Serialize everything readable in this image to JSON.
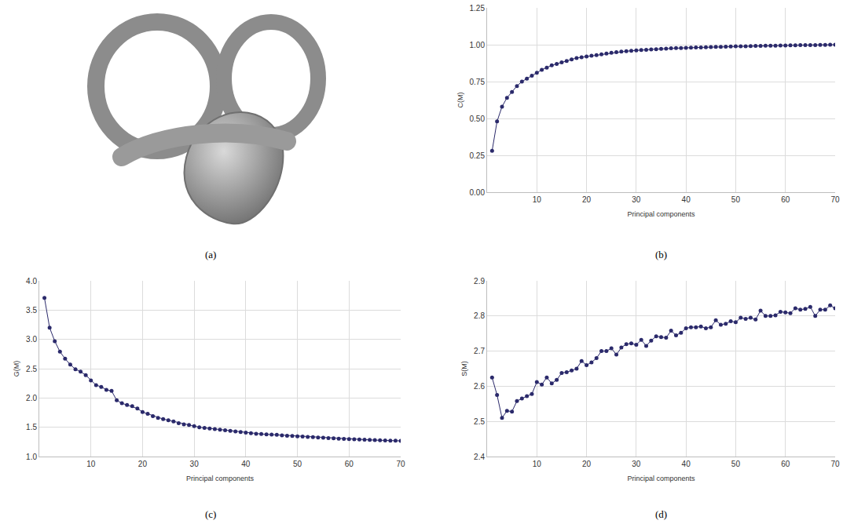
{
  "panel_a": {
    "caption": "(a)"
  },
  "chart_data": [
    {
      "type": "line",
      "caption": "(b)",
      "x_label": "Principal components",
      "y_label": "C(M)",
      "marker": "circle",
      "color": "#2b2a6b",
      "grid": true,
      "xlim": [
        0,
        70
      ],
      "xticks": [
        10,
        20,
        30,
        40,
        50,
        60,
        70
      ],
      "ylim": [
        0,
        1.25
      ],
      "yticks": [
        {
          "value": 0,
          "label": "0.00"
        },
        {
          "value": 0.25,
          "label": "0.25"
        },
        {
          "value": 0.5,
          "label": "0.50"
        },
        {
          "value": 0.75,
          "label": "0.75"
        },
        {
          "value": 1,
          "label": "1.00"
        },
        {
          "value": 1.25,
          "label": "1.25"
        }
      ],
      "x": [
        1,
        2,
        3,
        4,
        5,
        6,
        7,
        8,
        9,
        10,
        11,
        12,
        13,
        14,
        15,
        16,
        17,
        18,
        19,
        20,
        21,
        22,
        23,
        24,
        25,
        26,
        27,
        28,
        29,
        30,
        31,
        32,
        33,
        34,
        35,
        36,
        37,
        38,
        39,
        40,
        41,
        42,
        43,
        44,
        45,
        46,
        47,
        48,
        49,
        50,
        51,
        52,
        53,
        54,
        55,
        56,
        57,
        58,
        59,
        60,
        61,
        62,
        63,
        64,
        65,
        66,
        67,
        68,
        69,
        70
      ],
      "values": [
        0.28,
        0.48,
        0.58,
        0.64,
        0.68,
        0.72,
        0.75,
        0.77,
        0.79,
        0.81,
        0.83,
        0.845,
        0.86,
        0.87,
        0.88,
        0.89,
        0.9,
        0.91,
        0.915,
        0.92,
        0.925,
        0.93,
        0.935,
        0.94,
        0.945,
        0.95,
        0.953,
        0.956,
        0.959,
        0.962,
        0.964,
        0.966,
        0.968,
        0.97,
        0.972,
        0.974,
        0.976,
        0.977,
        0.978,
        0.979,
        0.98,
        0.981,
        0.982,
        0.983,
        0.984,
        0.985,
        0.986,
        0.987,
        0.988,
        0.989,
        0.99,
        0.99,
        0.991,
        0.992,
        0.992,
        0.993,
        0.994,
        0.994,
        0.995,
        0.995,
        0.996,
        0.996,
        0.997,
        0.997,
        0.998,
        0.998,
        0.999,
        0.999,
        1.0,
        1.0
      ]
    },
    {
      "type": "line",
      "caption": "(c)",
      "x_label": "Principal components",
      "y_label": "G(M)",
      "marker": "circle",
      "color": "#2b2a6b",
      "grid": true,
      "xlim": [
        0,
        70
      ],
      "xticks": [
        10,
        20,
        30,
        40,
        50,
        60,
        70
      ],
      "ylim": [
        1,
        4
      ],
      "yticks": [
        {
          "value": 1,
          "label": "1.0"
        },
        1.5,
        {
          "value": 2,
          "label": "2.0"
        },
        2.5,
        {
          "value": 3,
          "label": "3.0"
        },
        3.5,
        {
          "value": 4,
          "label": "4.0"
        }
      ],
      "x": [
        1,
        2,
        3,
        4,
        5,
        6,
        7,
        8,
        9,
        10,
        11,
        12,
        13,
        14,
        15,
        16,
        17,
        18,
        19,
        20,
        21,
        22,
        23,
        24,
        25,
        26,
        27,
        28,
        29,
        30,
        31,
        32,
        33,
        34,
        35,
        36,
        37,
        38,
        39,
        40,
        41,
        42,
        43,
        44,
        45,
        46,
        47,
        48,
        49,
        50,
        51,
        52,
        53,
        54,
        55,
        56,
        57,
        58,
        59,
        60,
        61,
        62,
        63,
        64,
        65,
        66,
        67,
        68,
        69,
        70
      ],
      "values": [
        3.71,
        3.2,
        2.97,
        2.79,
        2.67,
        2.57,
        2.49,
        2.45,
        2.39,
        2.3,
        2.22,
        2.19,
        2.14,
        2.12,
        1.96,
        1.91,
        1.88,
        1.86,
        1.82,
        1.76,
        1.73,
        1.69,
        1.66,
        1.64,
        1.62,
        1.6,
        1.57,
        1.55,
        1.54,
        1.52,
        1.5,
        1.49,
        1.48,
        1.47,
        1.46,
        1.45,
        1.44,
        1.43,
        1.42,
        1.41,
        1.4,
        1.39,
        1.385,
        1.38,
        1.375,
        1.37,
        1.36,
        1.355,
        1.35,
        1.345,
        1.34,
        1.335,
        1.33,
        1.325,
        1.32,
        1.315,
        1.31,
        1.305,
        1.3,
        1.298,
        1.295,
        1.29,
        1.288,
        1.285,
        1.28,
        1.278,
        1.275,
        1.272,
        1.27,
        1.268
      ]
    },
    {
      "type": "line",
      "caption": "(d)",
      "x_label": "Principal components",
      "y_label": "S(M)",
      "marker": "circle",
      "color": "#2b2a6b",
      "grid": true,
      "xlim": [
        0,
        70
      ],
      "xticks": [
        10,
        20,
        30,
        40,
        50,
        60,
        70
      ],
      "ylim": [
        2.4,
        2.9
      ],
      "yticks": [
        2.4,
        2.5,
        2.6,
        2.7,
        2.8,
        2.9
      ],
      "x": [
        1,
        2,
        3,
        4,
        5,
        6,
        7,
        8,
        9,
        10,
        11,
        12,
        13,
        14,
        15,
        16,
        17,
        18,
        19,
        20,
        21,
        22,
        23,
        24,
        25,
        26,
        27,
        28,
        29,
        30,
        31,
        32,
        33,
        34,
        35,
        36,
        37,
        38,
        39,
        40,
        41,
        42,
        43,
        44,
        45,
        46,
        47,
        48,
        49,
        50,
        51,
        52,
        53,
        54,
        55,
        56,
        57,
        58,
        59,
        60,
        61,
        62,
        63,
        64,
        65,
        66,
        67,
        68,
        69,
        70
      ],
      "values": [
        2.625,
        2.575,
        2.51,
        2.53,
        2.528,
        2.558,
        2.565,
        2.572,
        2.578,
        2.612,
        2.605,
        2.625,
        2.608,
        2.618,
        2.638,
        2.64,
        2.645,
        2.65,
        2.672,
        2.66,
        2.668,
        2.68,
        2.7,
        2.7,
        2.708,
        2.69,
        2.71,
        2.72,
        2.722,
        2.718,
        2.732,
        2.715,
        2.73,
        2.742,
        2.74,
        2.738,
        2.758,
        2.745,
        2.752,
        2.765,
        2.768,
        2.768,
        2.77,
        2.765,
        2.768,
        2.788,
        2.775,
        2.778,
        2.785,
        2.782,
        2.795,
        2.792,
        2.795,
        2.79,
        2.815,
        2.8,
        2.8,
        2.802,
        2.812,
        2.81,
        2.808,
        2.822,
        2.818,
        2.82,
        2.826,
        2.8,
        2.818,
        2.818,
        2.83,
        2.822
      ]
    }
  ]
}
